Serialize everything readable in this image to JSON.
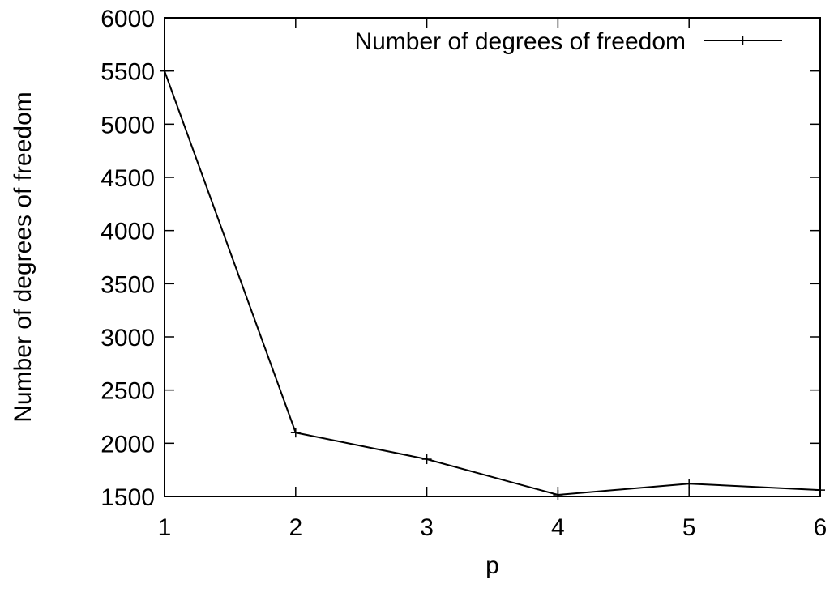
{
  "chart_data": {
    "type": "line",
    "title": "",
    "xlabel": "p",
    "ylabel": "Number of degrees of freedom",
    "xlim": [
      1,
      6
    ],
    "ylim": [
      1500,
      6000
    ],
    "xticks": [
      1,
      2,
      3,
      4,
      5,
      6
    ],
    "yticks": [
      1500,
      2000,
      2500,
      3000,
      3500,
      4000,
      4500,
      5000,
      5500,
      6000
    ],
    "grid": false,
    "legend_position": "top-right",
    "series": [
      {
        "name": "Number of degrees of freedom",
        "color": "#000000",
        "marker": "plus",
        "x": [
          1,
          2,
          3,
          4,
          5,
          6
        ],
        "y": [
          5500,
          2100,
          1850,
          1515,
          1620,
          1560
        ]
      }
    ]
  }
}
